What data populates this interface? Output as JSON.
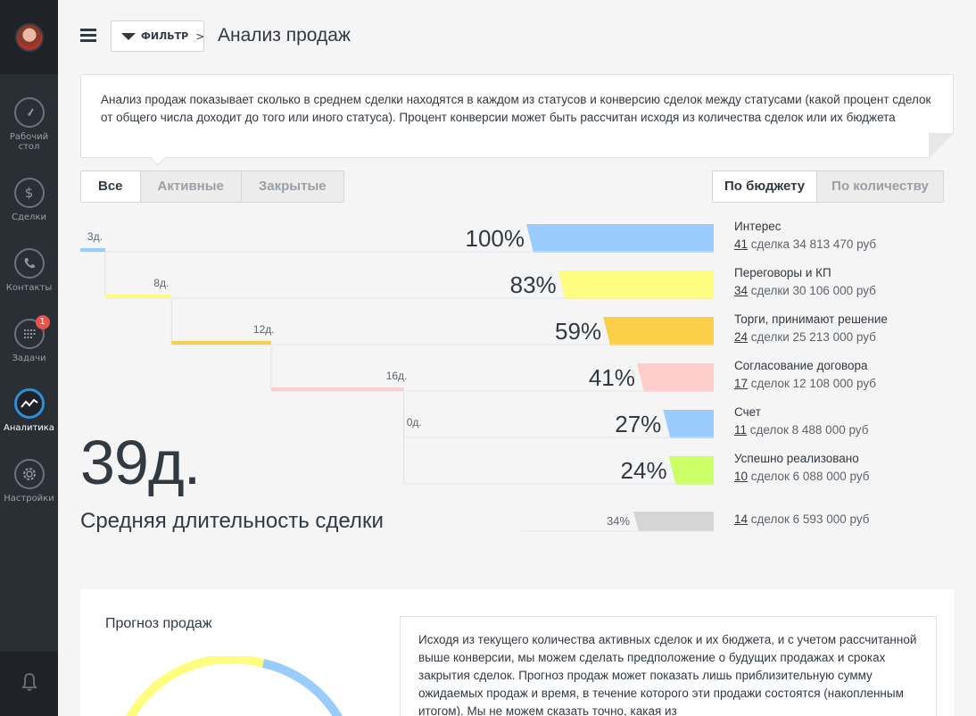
{
  "nav": {
    "items": [
      {
        "label": "Рабочий стол",
        "icon": "dashboard-icon"
      },
      {
        "label": "Сделки",
        "icon": "dollar-icon"
      },
      {
        "label": "Контакты",
        "icon": "phone-icon"
      },
      {
        "label": "Задачи",
        "icon": "calendar-icon",
        "badge": "1"
      },
      {
        "label": "Аналитика",
        "icon": "analytics-icon",
        "active": true
      },
      {
        "label": "Настройки",
        "icon": "gear-icon"
      }
    ]
  },
  "header": {
    "filter_label": "ФИЛЬТР",
    "filter_chevron": ">",
    "title": "Анализ продаж"
  },
  "info_text": "Анализ продаж показывает сколько в среднем сделки находятся в каждом из статусов и конверсию сделок между статусами (какой процент сделок от общего числа доходит до того или иного статуса). Процент конверсии может быть рассчитан исходя из количества сделок или их бюджета",
  "status_tabs": [
    "Все",
    "Активные",
    "Закрытые"
  ],
  "status_tab_active": "Все",
  "mode_tabs": [
    "По бюджету",
    "По количеству"
  ],
  "mode_tab_active": "По бюджету",
  "chart_data": {
    "type": "funnel",
    "stages": [
      {
        "name": "Интерес",
        "percent": 100,
        "pct_label": "100%",
        "days_label": "3д.",
        "days": 3,
        "deals_count": "41",
        "deals_text": "сделка 34 813 470 руб",
        "color": "#99ccfd"
      },
      {
        "name": "Переговоры и КП",
        "percent": 83,
        "pct_label": "83%",
        "days_label": "8д.",
        "days": 8,
        "deals_count": "34",
        "deals_text": "сделки 30 106 000 руб",
        "color": "#fffd7f"
      },
      {
        "name": "Торги, принимают решение",
        "percent": 59,
        "pct_label": "59%",
        "days_label": "12д.",
        "days": 12,
        "deals_count": "24",
        "deals_text": "сделки 25 213 000 руб",
        "color": "#fbce4a"
      },
      {
        "name": "Согласование договора",
        "percent": 41,
        "pct_label": "41%",
        "days_label": "16д.",
        "days": 16,
        "deals_count": "17",
        "deals_text": "сделок 12 108 000 руб",
        "color": "#ffcccc"
      },
      {
        "name": "Счет",
        "percent": 27,
        "pct_label": "27%",
        "days_label": "0д.",
        "days": 0,
        "deals_count": "11",
        "deals_text": "сделок 8 488 000 руб",
        "color": "#99ccfd"
      },
      {
        "name": "Успешно реализовано",
        "percent": 24,
        "pct_label": "24%",
        "days_label": "",
        "days": null,
        "deals_count": "10",
        "deals_text": "сделок 6 088 000 руб",
        "color": "#ccff66"
      }
    ],
    "lost": {
      "percent": 34,
      "pct_label": "34%",
      "deals_count": "14",
      "deals_text": "сделок 6 593 000 руб",
      "color": "#d5d5d5"
    }
  },
  "summary": {
    "avg_days": "39д.",
    "avg_label": "Средняя длительность сделки"
  },
  "forecast": {
    "title": "Прогноз продаж",
    "text": "Исходя из текущего количества активных сделок и их бюджета, и с учетом рассчитанной выше конверсии, мы можем сделать предположение о будущих продажах и сроках закрытия сделок. Прогноз продаж может показать лишь приблизительную сумму ожидаемых продаж и время, в течение которого эти продажи состоятся (накопленным итогом). Мы не можем сказать точно, какая из",
    "ring_colors": [
      "#fffd7f",
      "#99ccfd"
    ]
  }
}
